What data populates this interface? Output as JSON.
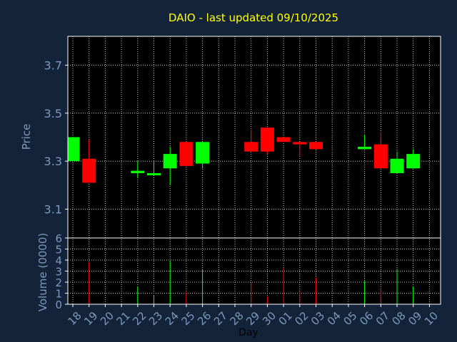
{
  "colors": {
    "background": "#13233a",
    "plot_background": "#000000",
    "axis_text": "#7f98bb",
    "title": "#ffff00",
    "grid": "#c8c8c8",
    "up": "#00ff00",
    "down": "#ff0000"
  },
  "chart_data": [
    {
      "type": "candlestick",
      "title": "DAIO - last updated 09/10/2025",
      "ylabel": "Price",
      "ylim": [
        2.98,
        3.82
      ],
      "yticks": [
        3.1,
        3.3,
        3.5,
        3.7
      ],
      "ytick_labels": [
        "3.1",
        "3.3",
        "3.5",
        "3.7"
      ],
      "grid": true,
      "candles": [
        {
          "day": "18",
          "open": 3.3,
          "close": 3.4,
          "high": 3.4,
          "low": 3.3
        },
        {
          "day": "19",
          "open": 3.31,
          "close": 3.21,
          "high": 3.39,
          "low": 3.21
        },
        {
          "day": "22",
          "open": 3.25,
          "close": 3.26,
          "high": 3.3,
          "low": 3.23
        },
        {
          "day": "23",
          "open": 3.245,
          "close": 3.25,
          "high": 3.3,
          "low": 3.245
        },
        {
          "day": "24",
          "open": 3.27,
          "close": 3.33,
          "high": 3.36,
          "low": 3.2
        },
        {
          "day": "25",
          "open": 3.38,
          "close": 3.28,
          "high": 3.38,
          "low": 3.28
        },
        {
          "day": "26",
          "open": 3.29,
          "close": 3.38,
          "high": 3.38,
          "low": 3.27
        },
        {
          "day": "29",
          "open": 3.38,
          "close": 3.34,
          "high": 3.43,
          "low": 3.34
        },
        {
          "day": "30",
          "open": 3.44,
          "close": 3.34,
          "high": 3.44,
          "low": 3.33
        },
        {
          "day": "01",
          "open": 3.4,
          "close": 3.38,
          "high": 3.4,
          "low": 3.38
        },
        {
          "day": "02",
          "open": 3.38,
          "close": 3.37,
          "high": 3.38,
          "low": 3.32
        },
        {
          "day": "03",
          "open": 3.38,
          "close": 3.35,
          "high": 3.38,
          "low": 3.35
        },
        {
          "day": "06",
          "open": 3.35,
          "close": 3.36,
          "high": 3.41,
          "low": 3.35
        },
        {
          "day": "07",
          "open": 3.37,
          "close": 3.27,
          "high": 3.42,
          "low": 3.27
        },
        {
          "day": "08",
          "open": 3.25,
          "close": 3.31,
          "high": 3.34,
          "low": 3.25
        },
        {
          "day": "09",
          "open": 3.27,
          "close": 3.33,
          "high": 3.35,
          "low": 3.27
        }
      ]
    },
    {
      "type": "bar",
      "ylabel": "Volume (0000)",
      "xlabel": "Day",
      "ylim": [
        0,
        6
      ],
      "yticks": [
        0,
        1,
        2,
        3,
        4,
        5,
        6
      ],
      "ytick_labels": [
        "0",
        "1",
        "2",
        "3",
        "4",
        "5",
        "6"
      ],
      "categories": [
        "18",
        "19",
        "20",
        "21",
        "22",
        "23",
        "24",
        "25",
        "26",
        "27",
        "28",
        "29",
        "30",
        "01",
        "02",
        "03",
        "04",
        "05",
        "06",
        "07",
        "08",
        "09",
        "10"
      ],
      "volumes": [
        {
          "day": "18",
          "value": 0
        },
        {
          "day": "19",
          "value": 3.8,
          "direction": "down"
        },
        {
          "day": "22",
          "value": 1.6,
          "direction": "up"
        },
        {
          "day": "23",
          "value": 0.8,
          "direction": "up"
        },
        {
          "day": "24",
          "value": 3.9,
          "direction": "up"
        },
        {
          "day": "25",
          "value": 1.1,
          "direction": "down"
        },
        {
          "day": "26",
          "value": 3.2,
          "direction": "up"
        },
        {
          "day": "29",
          "value": 2.0,
          "direction": "down"
        },
        {
          "day": "30",
          "value": 0.7,
          "direction": "down"
        },
        {
          "day": "01",
          "value": 3.3,
          "direction": "down"
        },
        {
          "day": "02",
          "value": 1.1,
          "direction": "down"
        },
        {
          "day": "03",
          "value": 2.4,
          "direction": "down"
        },
        {
          "day": "06",
          "value": 2.1,
          "direction": "up"
        },
        {
          "day": "07",
          "value": 1.4,
          "direction": "down"
        },
        {
          "day": "08",
          "value": 3.2,
          "direction": "up"
        },
        {
          "day": "09",
          "value": 1.6,
          "direction": "up"
        }
      ]
    }
  ]
}
